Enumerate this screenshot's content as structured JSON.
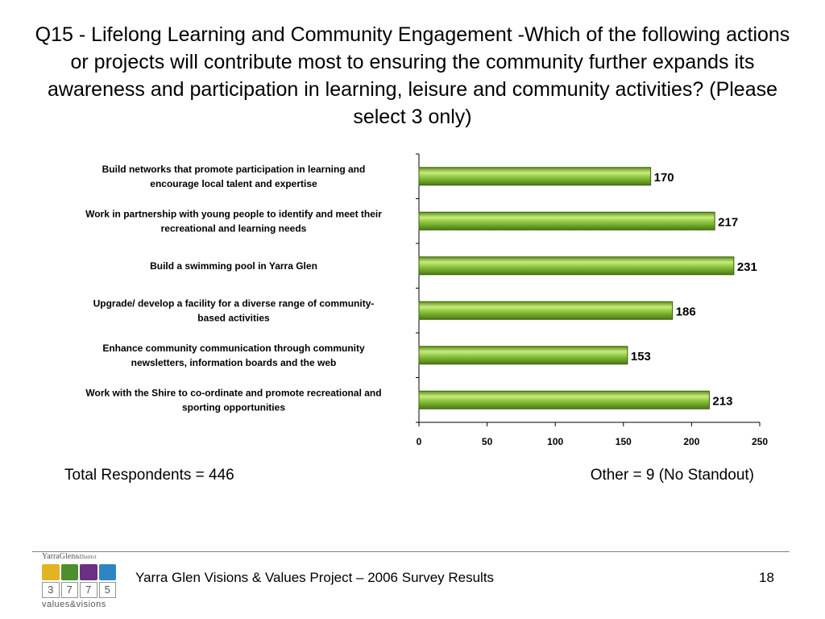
{
  "slide": {
    "title": "Q15 - Lifelong Learning and Community Engagement -Which of the following actions or projects will contribute most to ensuring the community further expands its awareness and participation in learning, leisure and community activities? (Please select 3 only)",
    "total_respondents": "Total Respondents = 446",
    "other_note": "Other = 9 (No Standout)"
  },
  "footer": {
    "project_title": "Yarra Glen Visions & Values Project – 2006 Survey Results",
    "page_number": "18"
  },
  "logo": {
    "brand": "YarraGlen",
    "brand_suffix": "&District",
    "digits": [
      "3",
      "7",
      "7",
      "5"
    ],
    "tagline": "values&visions",
    "icon_colors": [
      "#e2b322",
      "#4d8f2e",
      "#6b2f83",
      "#2e86c1"
    ]
  },
  "chart_data": {
    "type": "bar",
    "orientation": "horizontal",
    "categories": [
      [
        "Build networks that promote participation in learning and",
        "encourage local talent and expertise"
      ],
      [
        "Work in partnership with young people to identify and meet their",
        "recreational and learning needs"
      ],
      [
        "Build a swimming pool in Yarra Glen"
      ],
      [
        "Upgrade/ develop a facility for a diverse range of community-",
        "based activities"
      ],
      [
        "Enhance community communication through community",
        "newsletters, information boards and the web"
      ],
      [
        "Work with the Shire to co-ordinate and promote recreational and",
        "sporting opportunities"
      ]
    ],
    "values": [
      170,
      217,
      231,
      186,
      153,
      213
    ],
    "xlim": [
      0,
      250
    ],
    "xticks": [
      0,
      50,
      100,
      150,
      200,
      250
    ],
    "grid": false,
    "legend": "none",
    "bar_color": "#8dc63f",
    "bar_edge_color": "#3a5f0b"
  }
}
